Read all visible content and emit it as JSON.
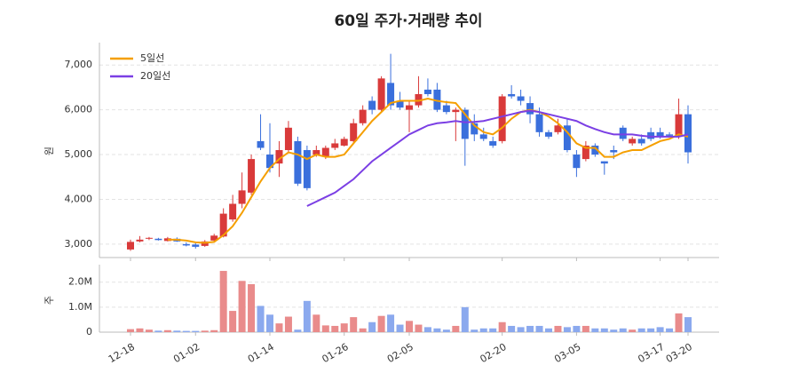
{
  "chart_data": [
    {
      "type": "candlestick",
      "title": "60일 주가·거래량 추이",
      "ylabel": "원",
      "up_color": "#d93a3a",
      "down_color": "#3a6fdc",
      "legend": "upper left",
      "grid": true,
      "open": [
        2880,
        3060,
        3120,
        3120,
        3070,
        3120,
        3000,
        2990,
        2960,
        3080,
        3170,
        3550,
        3900,
        4150,
        5300,
        5000,
        4800,
        5100,
        5300,
        5100,
        5000,
        4950,
        5150,
        5200,
        5300,
        5700,
        6200,
        6000,
        6600,
        6200,
        6000,
        6100,
        6450,
        6450,
        6100,
        5950,
        6000,
        5700,
        5450,
        5300,
        5300,
        6350,
        6300,
        6150,
        5900,
        5500,
        5500,
        5650,
        5000,
        4900,
        5200,
        4850,
        5100,
        5600,
        5250,
        5350,
        5500,
        5500,
        5450,
        5400,
        5900
      ],
      "high": [
        3100,
        3180,
        3160,
        3140,
        3160,
        3150,
        3040,
        3020,
        3090,
        3230,
        3800,
        4100,
        4600,
        5000,
        5900,
        5700,
        5300,
        5750,
        5400,
        5200,
        5200,
        5200,
        5350,
        5400,
        5800,
        6100,
        6300,
        6750,
        7250,
        6400,
        6200,
        6750,
        6700,
        6600,
        6200,
        6050,
        6050,
        5900,
        5600,
        5400,
        6350,
        6550,
        6450,
        6300,
        6050,
        5550,
        5800,
        5800,
        5100,
        5300,
        5250,
        4850,
        5200,
        5650,
        5400,
        5450,
        5600,
        5600,
        5500,
        6250,
        6100
      ],
      "low": [
        2850,
        3040,
        3090,
        3080,
        3060,
        3050,
        2950,
        2900,
        2940,
        3060,
        3150,
        3500,
        3800,
        4100,
        5100,
        4600,
        4500,
        5050,
        4300,
        4200,
        4950,
        4900,
        5100,
        5180,
        5250,
        5650,
        5900,
        5950,
        6000,
        6000,
        5500,
        6050,
        6300,
        5950,
        5900,
        5300,
        4750,
        5300,
        5300,
        5150,
        5250,
        6250,
        6100,
        5700,
        5400,
        5350,
        5450,
        5050,
        4500,
        4850,
        4950,
        4550,
        4900,
        5300,
        5200,
        5200,
        5300,
        5350,
        5400,
        5350,
        4800
      ],
      "close": [
        3050,
        3100,
        3140,
        3090,
        3130,
        3060,
        2970,
        2940,
        3060,
        3190,
        3680,
        3900,
        4200,
        4900,
        5150,
        4700,
        5100,
        5600,
        4350,
        4250,
        5100,
        5150,
        5250,
        5350,
        5700,
        6000,
        6000,
        6700,
        6100,
        6050,
        6100,
        6350,
        6350,
        6000,
        5950,
        6000,
        5350,
        5450,
        5350,
        5200,
        6300,
        6300,
        6200,
        5900,
        5500,
        5400,
        5650,
        5100,
        4700,
        5200,
        5000,
        4800,
        5050,
        5350,
        5350,
        5250,
        5350,
        5400,
        5420,
        5900,
        5050
      ],
      "series": [
        {
          "name": "5일선",
          "color": "#f59f00",
          "values": [
            null,
            null,
            null,
            null,
            3100,
            3100,
            3080,
            3040,
            3030,
            3050,
            3200,
            3400,
            3700,
            4050,
            4400,
            4700,
            4900,
            5050,
            5000,
            4900,
            5000,
            4950,
            4950,
            5000,
            5250,
            5500,
            5750,
            5950,
            6150,
            6200,
            6200,
            6200,
            6250,
            6200,
            6170,
            6150,
            5900,
            5650,
            5500,
            5450,
            5600,
            5800,
            5950,
            6000,
            5950,
            5850,
            5700,
            5500,
            5250,
            5150,
            5150,
            4950,
            4950,
            5050,
            5100,
            5100,
            5200,
            5300,
            5350,
            5450,
            5400
          ]
        },
        {
          "name": "20일선",
          "color": "#7b3fe4",
          "values": [
            null,
            null,
            null,
            null,
            null,
            null,
            null,
            null,
            null,
            null,
            null,
            null,
            null,
            null,
            null,
            null,
            null,
            null,
            null,
            3850,
            3950,
            4050,
            4150,
            4300,
            4450,
            4650,
            4850,
            5000,
            5150,
            5300,
            5450,
            5550,
            5650,
            5700,
            5720,
            5750,
            5720,
            5730,
            5750,
            5800,
            5850,
            5900,
            5950,
            5980,
            5950,
            5900,
            5850,
            5800,
            5750,
            5650,
            5570,
            5500,
            5450,
            5450,
            5450,
            5420,
            5400,
            5400,
            5400,
            5400,
            5450
          ]
        }
      ],
      "ylim": [
        2700,
        7500
      ],
      "yticks": [
        {
          "value": 3000,
          "label": "3,000"
        },
        {
          "value": 4000,
          "label": "4,000"
        },
        {
          "value": 5000,
          "label": "5,000"
        },
        {
          "value": 6000,
          "label": "6,000"
        },
        {
          "value": 7000,
          "label": "7,000"
        }
      ]
    },
    {
      "type": "bar",
      "ylabel": "주",
      "up_color": "#e98b8b",
      "down_color": "#8ba9ee",
      "grid": true,
      "categories": [
        "12-18",
        null,
        null,
        null,
        null,
        null,
        null,
        "01-02",
        null,
        null,
        null,
        null,
        null,
        null,
        null,
        "01-14",
        null,
        null,
        null,
        null,
        null,
        null,
        null,
        "01-26",
        null,
        null,
        null,
        null,
        null,
        null,
        "02-05",
        null,
        null,
        null,
        null,
        null,
        null,
        null,
        null,
        null,
        "02-20",
        null,
        null,
        null,
        null,
        null,
        null,
        null,
        "03-05",
        null,
        null,
        null,
        null,
        null,
        null,
        null,
        null,
        "03-17",
        null,
        null,
        "03-20"
      ],
      "values": [
        120000,
        150000,
        100000,
        60000,
        80000,
        60000,
        50000,
        50000,
        60000,
        80000,
        2450000,
        850000,
        2050000,
        1920000,
        1050000,
        700000,
        350000,
        620000,
        100000,
        1250000,
        700000,
        270000,
        250000,
        350000,
        600000,
        150000,
        400000,
        650000,
        700000,
        300000,
        450000,
        300000,
        200000,
        150000,
        100000,
        250000,
        1000000,
        100000,
        150000,
        150000,
        400000,
        250000,
        200000,
        250000,
        250000,
        150000,
        250000,
        200000,
        250000,
        250000,
        150000,
        150000,
        100000,
        150000,
        100000,
        150000,
        150000,
        200000,
        150000,
        750000,
        600000
      ],
      "ylim": [
        0,
        2700000
      ],
      "yticks": [
        0,
        {
          "value": 1000000,
          "label": "1.0M"
        },
        {
          "value": 2000000,
          "label": "2.0M"
        }
      ]
    }
  ]
}
